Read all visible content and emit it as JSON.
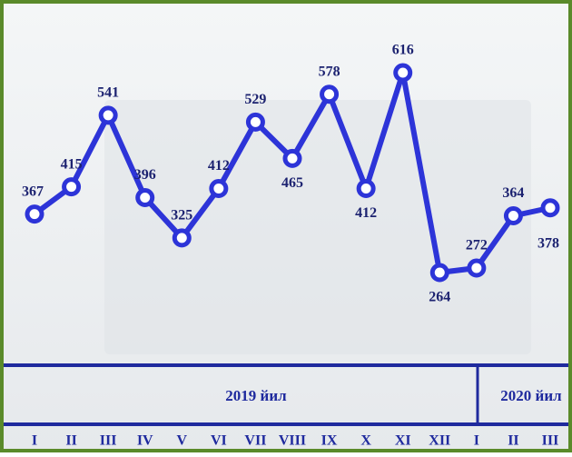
{
  "chart_data": {
    "type": "line",
    "categories": [
      "I",
      "II",
      "III",
      "IV",
      "V",
      "VI",
      "VII",
      "VIII",
      "IX",
      "X",
      "XI",
      "XII",
      "I",
      "II",
      "III"
    ],
    "series": [
      {
        "color": "#2d34d8",
        "values": [
          367,
          415,
          541,
          396,
          325,
          412,
          529,
          465,
          578,
          412,
          616,
          264,
          272,
          364,
          378
        ]
      }
    ],
    "ylim": [
      200,
      700
    ],
    "annotations": [
      "2019 йил",
      "2020 йил"
    ]
  }
}
